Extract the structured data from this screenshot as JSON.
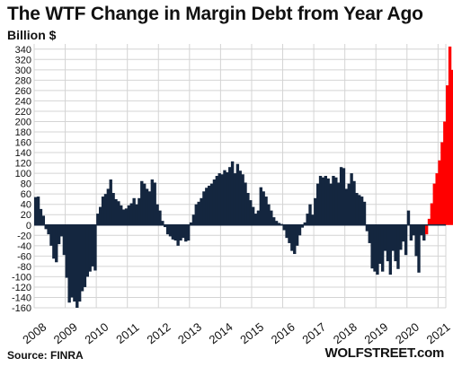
{
  "chart_data": {
    "type": "bar",
    "title": "The WTF Change in Margin Debt from Year Ago",
    "ylabel": "Billion $",
    "xlabel": "",
    "ylim": [
      -160,
      350
    ],
    "yticks": [
      -160,
      -140,
      -120,
      -100,
      -80,
      -60,
      -40,
      -20,
      0,
      20,
      40,
      60,
      80,
      100,
      120,
      140,
      160,
      180,
      200,
      220,
      240,
      260,
      280,
      300,
      320,
      340
    ],
    "xlim": [
      2008.0,
      2021.25
    ],
    "xticks": [
      "2008",
      "2009",
      "2010",
      "2011",
      "2012",
      "2013",
      "2014",
      "2015",
      "2016",
      "2017",
      "2018",
      "2019",
      "2020",
      "2021"
    ],
    "grid": true,
    "colors": {
      "base": "#14263f",
      "highlight": "#ff0000"
    },
    "highlight_from": "2020-08",
    "series": [
      {
        "start": "2008-01",
        "frequency": "monthly",
        "values": [
          54,
          55,
          31,
          18,
          -8,
          -18,
          -40,
          -65,
          -72,
          -37,
          -22,
          -58,
          -102,
          -150,
          -140,
          -148,
          -160,
          -148,
          -128,
          -120,
          -100,
          -90,
          -80,
          -88,
          22,
          35,
          55,
          60,
          70,
          88,
          62,
          50,
          46,
          38,
          30,
          32,
          38,
          42,
          52,
          40,
          52,
          85,
          80,
          70,
          65,
          88,
          82,
          40,
          28,
          8,
          -4,
          -18,
          -22,
          -28,
          -30,
          -40,
          -30,
          -25,
          -32,
          -30,
          5,
          20,
          40,
          45,
          52,
          65,
          72,
          76,
          80,
          88,
          95,
          100,
          98,
          106,
          102,
          112,
          123,
          100,
          118,
          105,
          98,
          82,
          62,
          48,
          35,
          22,
          28,
          73,
          65,
          55,
          40,
          28,
          15,
          8,
          4,
          2,
          -10,
          -25,
          -35,
          -50,
          -56,
          -40,
          -20,
          -5,
          5,
          22,
          40,
          20,
          52,
          80,
          95,
          92,
          95,
          90,
          80,
          95,
          92,
          82,
          112,
          110,
          70,
          80,
          100,
          85,
          62,
          58,
          55,
          45,
          -12,
          -35,
          -84,
          -90,
          -96,
          -75,
          -90,
          -50,
          -70,
          -96,
          -50,
          -70,
          -85,
          -48,
          -32,
          -58,
          28,
          -30,
          -20,
          -60,
          -92,
          -20,
          -30,
          -18,
          12,
          42,
          80,
          100,
          125,
          160,
          200,
          270,
          345,
          300
        ]
      }
    ]
  },
  "footer": {
    "source": "Source: FINRA",
    "credit": "WOLFSTREET.com"
  }
}
